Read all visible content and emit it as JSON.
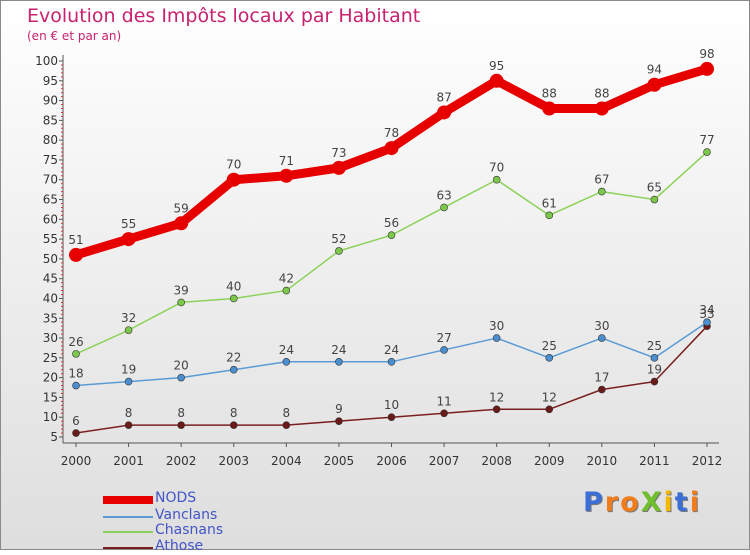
{
  "title": "Evolution des Impôts locaux par Habitant",
  "subtitle": "(en € et par an)",
  "chart_data": {
    "type": "line",
    "title": "Evolution des Impôts locaux par Habitant",
    "subtitle": "(en € et par an)",
    "xlabel": "",
    "ylabel": "",
    "ylim": [
      5,
      100
    ],
    "yticks": [
      5,
      10,
      15,
      20,
      25,
      30,
      35,
      40,
      45,
      50,
      55,
      60,
      65,
      70,
      75,
      80,
      85,
      90,
      95,
      100
    ],
    "grid": false,
    "legend_position": "bottom-left",
    "x": [
      "2000",
      "2001",
      "2002",
      "2003",
      "2004",
      "2005",
      "2006",
      "2007",
      "2008",
      "2009",
      "2010",
      "2011",
      "2012"
    ],
    "series": [
      {
        "name": "NODS",
        "color": "#e60000",
        "values": [
          51,
          55,
          59,
          70,
          71,
          73,
          78,
          87,
          95,
          88,
          88,
          94,
          98
        ]
      },
      {
        "name": "Vanclans",
        "color": "#5b9bd5",
        "values": [
          18,
          19,
          20,
          22,
          24,
          24,
          24,
          27,
          30,
          25,
          30,
          25,
          34
        ]
      },
      {
        "name": "Chasnans",
        "color": "#8cd25a",
        "values": [
          26,
          32,
          39,
          40,
          42,
          52,
          56,
          63,
          70,
          61,
          67,
          65,
          77
        ]
      },
      {
        "name": "Athose",
        "color": "#7a1f1f",
        "values": [
          6,
          8,
          8,
          8,
          8,
          9,
          10,
          11,
          12,
          12,
          17,
          19,
          33
        ]
      }
    ]
  },
  "logo": {
    "letters": [
      {
        "char": "P",
        "color": "#3b6fd6"
      },
      {
        "char": "r",
        "color": "#f07d1a"
      },
      {
        "char": "o",
        "color": "#f07d1a"
      },
      {
        "char": "X",
        "color": "#6fbf2a"
      },
      {
        "char": "i",
        "color": "#f5b800"
      },
      {
        "char": "t",
        "color": "#3b6fd6"
      },
      {
        "char": "i",
        "color": "#f07d1a"
      }
    ]
  }
}
